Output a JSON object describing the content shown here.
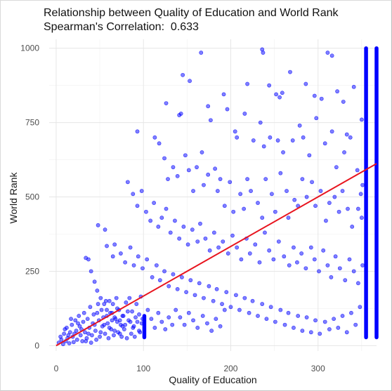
{
  "chart_data": {
    "type": "scatter",
    "title": "Relationship between Quality of Education and World Rank",
    "subtitle": "Spearman's Correlation:  0.633",
    "xlabel": "Quality of Education",
    "ylabel": "World Rank",
    "xlim": [
      -8,
      367
    ],
    "ylim": [
      -18,
      1030
    ],
    "x_ticks": [
      0,
      100,
      200,
      300
    ],
    "y_ticks": [
      0,
      250,
      500,
      750,
      1000
    ],
    "x_minor_ticks": [
      50,
      150,
      250,
      350
    ],
    "y_minor_ticks": [
      125,
      375,
      625,
      875
    ],
    "grid": true,
    "point_color": "#0000ff",
    "trend_color": "#e8141e",
    "trend_line": {
      "x": [
        0,
        367
      ],
      "y": [
        0,
        612
      ]
    },
    "columns": [
      {
        "x": 101,
        "y_range": [
          28,
          100
        ]
      },
      {
        "x": 355,
        "y_range": [
          28,
          1000
        ]
      },
      {
        "x": 367,
        "y_range": [
          28,
          1000
        ]
      }
    ],
    "points": [
      [
        166,
        985
      ],
      [
        236,
        996
      ],
      [
        237,
        985
      ],
      [
        311,
        985
      ],
      [
        316,
        975
      ],
      [
        145,
        910
      ],
      [
        153,
        890
      ],
      [
        219,
        880
      ],
      [
        244,
        875
      ],
      [
        252,
        845
      ],
      [
        256,
        835
      ],
      [
        259,
        850
      ],
      [
        268,
        920
      ],
      [
        286,
        880
      ],
      [
        296,
        840
      ],
      [
        304,
        830
      ],
      [
        322,
        855
      ],
      [
        329,
        820
      ],
      [
        341,
        870
      ],
      [
        350,
        760
      ],
      [
        333,
        710
      ],
      [
        126,
        815
      ],
      [
        143,
        780
      ],
      [
        141,
        775
      ],
      [
        174,
        805
      ],
      [
        177,
        758
      ],
      [
        192,
        845
      ],
      [
        196,
        795
      ],
      [
        205,
        720
      ],
      [
        207,
        700
      ],
      [
        216,
        780
      ],
      [
        226,
        690
      ],
      [
        234,
        750
      ],
      [
        238,
        670
      ],
      [
        245,
        700
      ],
      [
        254,
        690
      ],
      [
        260,
        650
      ],
      [
        271,
        690
      ],
      [
        279,
        740
      ],
      [
        283,
        700
      ],
      [
        290,
        640
      ],
      [
        298,
        765
      ],
      [
        308,
        680
      ],
      [
        316,
        720
      ],
      [
        321,
        600
      ],
      [
        330,
        650
      ],
      [
        337,
        700
      ],
      [
        345,
        590
      ],
      [
        351,
        540
      ],
      [
        93,
        720
      ],
      [
        113,
        700
      ],
      [
        118,
        680
      ],
      [
        124,
        630
      ],
      [
        128,
        560
      ],
      [
        134,
        600
      ],
      [
        139,
        570
      ],
      [
        148,
        640
      ],
      [
        152,
        590
      ],
      [
        157,
        520
      ],
      [
        161,
        600
      ],
      [
        167,
        650
      ],
      [
        169,
        540
      ],
      [
        174,
        575
      ],
      [
        182,
        595
      ],
      [
        185,
        520
      ],
      [
        188,
        560
      ],
      [
        193,
        470
      ],
      [
        199,
        550
      ],
      [
        203,
        450
      ],
      [
        211,
        510
      ],
      [
        215,
        460
      ],
      [
        219,
        560
      ],
      [
        223,
        520
      ],
      [
        231,
        480
      ],
      [
        236,
        430
      ],
      [
        240,
        560
      ],
      [
        247,
        510
      ],
      [
        251,
        450
      ],
      [
        257,
        580
      ],
      [
        264,
        520
      ],
      [
        266,
        430
      ],
      [
        273,
        490
      ],
      [
        277,
        470
      ],
      [
        282,
        560
      ],
      [
        287,
        500
      ],
      [
        293,
        550
      ],
      [
        297,
        470
      ],
      [
        303,
        520
      ],
      [
        309,
        420
      ],
      [
        313,
        480
      ],
      [
        319,
        500
      ],
      [
        324,
        450
      ],
      [
        328,
        520
      ],
      [
        334,
        460
      ],
      [
        339,
        400
      ],
      [
        346,
        460
      ],
      [
        349,
        510
      ],
      [
        350,
        430
      ],
      [
        82,
        550
      ],
      [
        88,
        510
      ],
      [
        93,
        470
      ],
      [
        98,
        520
      ],
      [
        103,
        450
      ],
      [
        108,
        420
      ],
      [
        112,
        480
      ],
      [
        117,
        400
      ],
      [
        121,
        430
      ],
      [
        126,
        460
      ],
      [
        131,
        380
      ],
      [
        136,
        420
      ],
      [
        141,
        360
      ],
      [
        146,
        400
      ],
      [
        151,
        340
      ],
      [
        156,
        390
      ],
      [
        162,
        350
      ],
      [
        165,
        410
      ],
      [
        171,
        360
      ],
      [
        176,
        320
      ],
      [
        181,
        380
      ],
      [
        186,
        330
      ],
      [
        191,
        350
      ],
      [
        197,
        310
      ],
      [
        202,
        370
      ],
      [
        207,
        330
      ],
      [
        212,
        290
      ],
      [
        218,
        360
      ],
      [
        222,
        310
      ],
      [
        228,
        340
      ],
      [
        233,
        280
      ],
      [
        239,
        380
      ],
      [
        244,
        320
      ],
      [
        249,
        290
      ],
      [
        255,
        350
      ],
      [
        261,
        300
      ],
      [
        267,
        270
      ],
      [
        272,
        330
      ],
      [
        276,
        280
      ],
      [
        281,
        310
      ],
      [
        286,
        260
      ],
      [
        292,
        330
      ],
      [
        296,
        290
      ],
      [
        301,
        250
      ],
      [
        306,
        320
      ],
      [
        311,
        270
      ],
      [
        315,
        230
      ],
      [
        320,
        300
      ],
      [
        325,
        260
      ],
      [
        331,
        220
      ],
      [
        336,
        290
      ],
      [
        341,
        250
      ],
      [
        346,
        210
      ],
      [
        351,
        270
      ],
      [
        48,
        405
      ],
      [
        56,
        390
      ],
      [
        58,
        335
      ],
      [
        65,
        300
      ],
      [
        67,
        340
      ],
      [
        74,
        310
      ],
      [
        79,
        280
      ],
      [
        85,
        330
      ],
      [
        89,
        270
      ],
      [
        94,
        300
      ],
      [
        99,
        260
      ],
      [
        104,
        290
      ],
      [
        110,
        230
      ],
      [
        115,
        270
      ],
      [
        119,
        220
      ],
      [
        124,
        250
      ],
      [
        129,
        200
      ],
      [
        134,
        240
      ],
      [
        139,
        190
      ],
      [
        144,
        230
      ],
      [
        149,
        180
      ],
      [
        154,
        220
      ],
      [
        159,
        170
      ],
      [
        164,
        210
      ],
      [
        169,
        160
      ],
      [
        175,
        200
      ],
      [
        180,
        150
      ],
      [
        184,
        190
      ],
      [
        190,
        140
      ],
      [
        195,
        180
      ],
      [
        200,
        130
      ],
      [
        206,
        170
      ],
      [
        210,
        120
      ],
      [
        216,
        160
      ],
      [
        221,
        110
      ],
      [
        225,
        150
      ],
      [
        231,
        100
      ],
      [
        236,
        140
      ],
      [
        241,
        90
      ],
      [
        246,
        130
      ],
      [
        251,
        80
      ],
      [
        257,
        120
      ],
      [
        262,
        70
      ],
      [
        266,
        110
      ],
      [
        272,
        60
      ],
      [
        277,
        100
      ],
      [
        282,
        50
      ],
      [
        287,
        95
      ],
      [
        292,
        45
      ],
      [
        297,
        85
      ],
      [
        302,
        40
      ],
      [
        308,
        80
      ],
      [
        313,
        55
      ],
      [
        318,
        90
      ],
      [
        323,
        60
      ],
      [
        328,
        100
      ],
      [
        333,
        45
      ],
      [
        338,
        110
      ],
      [
        343,
        70
      ],
      [
        348,
        130
      ],
      [
        34,
        295
      ],
      [
        37,
        290
      ],
      [
        40,
        250
      ],
      [
        44,
        215
      ],
      [
        47,
        185
      ],
      [
        51,
        160
      ],
      [
        55,
        140
      ],
      [
        58,
        120
      ],
      [
        61,
        150
      ],
      [
        64,
        110
      ],
      [
        67,
        95
      ],
      [
        70,
        125
      ],
      [
        73,
        85
      ],
      [
        76,
        100
      ],
      [
        79,
        70
      ],
      [
        82,
        115
      ],
      [
        85,
        80
      ],
      [
        88,
        60
      ],
      [
        91,
        95
      ],
      [
        95,
        50
      ],
      [
        98,
        75
      ],
      [
        105,
        120
      ],
      [
        109,
        90
      ],
      [
        113,
        60
      ],
      [
        117,
        110
      ],
      [
        121,
        80
      ],
      [
        125,
        55
      ],
      [
        129,
        95
      ],
      [
        133,
        70
      ],
      [
        137,
        120
      ],
      [
        142,
        95
      ],
      [
        147,
        70
      ],
      [
        152,
        110
      ],
      [
        157,
        85
      ],
      [
        162,
        60
      ],
      [
        168,
        100
      ],
      [
        173,
        75
      ],
      [
        178,
        50
      ],
      [
        183,
        90
      ],
      [
        188,
        65
      ],
      [
        193,
        120
      ],
      [
        3,
        10
      ],
      [
        5,
        30
      ],
      [
        6,
        20
      ],
      [
        8,
        5
      ],
      [
        9,
        40
      ],
      [
        11,
        15
      ],
      [
        12,
        60
      ],
      [
        13,
        25
      ],
      [
        15,
        8
      ],
      [
        16,
        45
      ],
      [
        18,
        70
      ],
      [
        19,
        30
      ],
      [
        20,
        12
      ],
      [
        22,
        85
      ],
      [
        23,
        50
      ],
      [
        24,
        20
      ],
      [
        26,
        100
      ],
      [
        27,
        65
      ],
      [
        28,
        35
      ],
      [
        30,
        15
      ],
      [
        31,
        80
      ],
      [
        32,
        110
      ],
      [
        33,
        45
      ],
      [
        35,
        25
      ],
      [
        36,
        90
      ],
      [
        38,
        60
      ],
      [
        39,
        130
      ],
      [
        41,
        35
      ],
      [
        42,
        75
      ],
      [
        43,
        105
      ],
      [
        45,
        50
      ],
      [
        46,
        20
      ],
      [
        48,
        140
      ],
      [
        49,
        85
      ],
      [
        50,
        30
      ],
      [
        52,
        120
      ],
      [
        53,
        65
      ],
      [
        54,
        95
      ],
      [
        56,
        40
      ],
      [
        57,
        150
      ],
      [
        59,
        75
      ],
      [
        60,
        25
      ],
      [
        62,
        110
      ],
      [
        63,
        55
      ],
      [
        65,
        140
      ],
      [
        66,
        35
      ],
      [
        68,
        90
      ],
      [
        69,
        160
      ],
      [
        71,
        45
      ],
      [
        72,
        120
      ],
      [
        74,
        70
      ],
      [
        75,
        30
      ],
      [
        77,
        100
      ],
      [
        78,
        55
      ],
      [
        80,
        145
      ],
      [
        81,
        25
      ],
      [
        83,
        85
      ],
      [
        84,
        160
      ],
      [
        86,
        40
      ],
      [
        87,
        115
      ],
      [
        89,
        65
      ],
      [
        90,
        30
      ],
      [
        92,
        140
      ],
      [
        93,
        80
      ],
      [
        95,
        105
      ],
      [
        96,
        45
      ],
      [
        97,
        165
      ],
      [
        99,
        90
      ],
      [
        10,
        55
      ],
      [
        14,
        35
      ],
      [
        17,
        90
      ],
      [
        21,
        40
      ],
      [
        25,
        75
      ],
      [
        29,
        55
      ],
      [
        34,
        15
      ],
      [
        37,
        40
      ],
      [
        40,
        10
      ],
      [
        44,
        70
      ],
      [
        47,
        110
      ],
      [
        51,
        45
      ],
      [
        55,
        70
      ],
      [
        58,
        100
      ],
      [
        61,
        60
      ],
      [
        64,
        85
      ],
      [
        67,
        50
      ],
      [
        70,
        80
      ],
      [
        73,
        40
      ],
      [
        76,
        65
      ]
    ]
  }
}
